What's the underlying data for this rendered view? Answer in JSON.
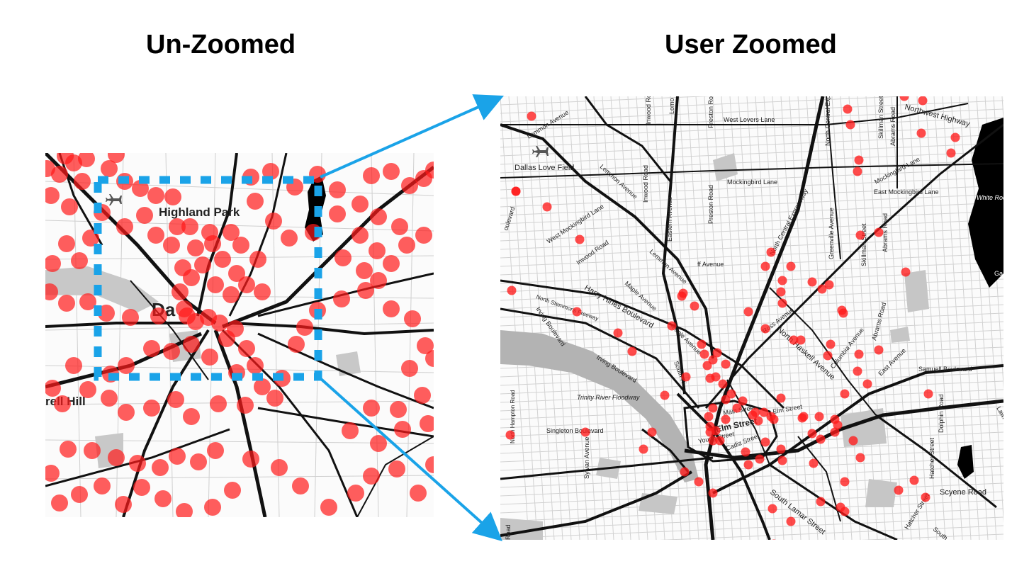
{
  "titles": {
    "left": "Un-Zoomed",
    "right": "User Zoomed"
  },
  "colors": {
    "point": "#ff1a1a",
    "highlight": "#1aa3e8",
    "road_major": "#111111",
    "road_minor": "#bdbdbd",
    "water": "#000000",
    "park": "#c9c9c9"
  },
  "unzoomed_map": {
    "labels": {
      "highland_park": "Highland Park",
      "downtown_partial": "Da",
      "cockrell_hill_partial": "rell Hill"
    },
    "icons": [
      "airport-icon"
    ]
  },
  "zoomed_map": {
    "labels": {
      "dallas_love_field": "Dallas Love Field",
      "lemmon_avenue_1": "Lemmon Avenue",
      "lemmon_avenue_2": "Lemmon Avenue",
      "lemmon_avenue_3": "Lemmon Avenue",
      "inwood_road_top": "Inwood Road",
      "lomo": "Lomo",
      "preston_road_top": "Preston Road",
      "west_lovers_lane": "West Lovers Lane",
      "north_central_expwy_top": "North Central Expr",
      "skillman_street_top": "Skillman Street",
      "abrams_road_top": "Abrams Road",
      "northwest_highway": "Northwest Highway",
      "mockingbird_lane": "Mockingbird Lane",
      "east_mockingbird_lane": "East Mockingbird Lane",
      "mockingbird_lane_ne": "Mockingbird Lane",
      "white_rock": "White Rock",
      "inwood_road_mid": "Inwood Road",
      "eastern_avenue": "Eastern Avenue",
      "preston_road_mid": "Preston Road",
      "west_mockingbird_lane": "West Mockingbird Lane",
      "inwood_road_diag": "Inwood Road",
      "boulevard_left": "oulevard",
      "north_central_expressway": "North Central Expressway",
      "greenville_avenue": "Greenville Avenue",
      "skillman_street_mid": "Skillman Street",
      "abrams_road_mid": "Abrams Road",
      "mckinney_avenue": "ff Avenue",
      "maple_avenue_1": "Maple Avenue",
      "maple_avenue_2": "Maple Avenue",
      "harry_hines_boulevard": "Harry Hines Boulevard",
      "north_stemmons_freeway": "North Stemmons Freeway",
      "irving_boulevard_1": "Irving Boulevard",
      "irving_boulevard_2": "Irving Boulevard",
      "ross_avenue": "Ross Avenue",
      "north_haskell_avenue": "North Haskell Avenue",
      "abrams_road_low": "Abrams Road",
      "columbia_avenue": "Columbia Avenue",
      "samuell_boulevard": "Samuell Boulevard",
      "trinity_river_floodway": "Trinity River Floodway",
      "north_hampton_road": "North Hampton Road",
      "singleton_boulevard": "Singleton Boulevard",
      "sylvan_avenue": "Sylvan Avenue",
      "south_riverfront": "South Ri",
      "main_street": "Main Street",
      "elm_street": "Elm Street",
      "elm_street_big": "Elm Street",
      "young_street": "Young Street",
      "cadiz_street": "Cadiz Street",
      "dolphin_road": "Dolphin Road",
      "hatcher_street_1": "Hatcher Street",
      "hatcher_street_2": "Hatcher Street",
      "scyene_road": "Scyene Road",
      "south_lamar_street": "South Lamar Street",
      "east_avenue": "East Avenue",
      "south_partial": "South",
      "lawnview_partial": "Lawn",
      "ga_partial": "Ga",
      "road_bottom_left": "Road"
    },
    "icons": [
      "airport-icon"
    ]
  }
}
